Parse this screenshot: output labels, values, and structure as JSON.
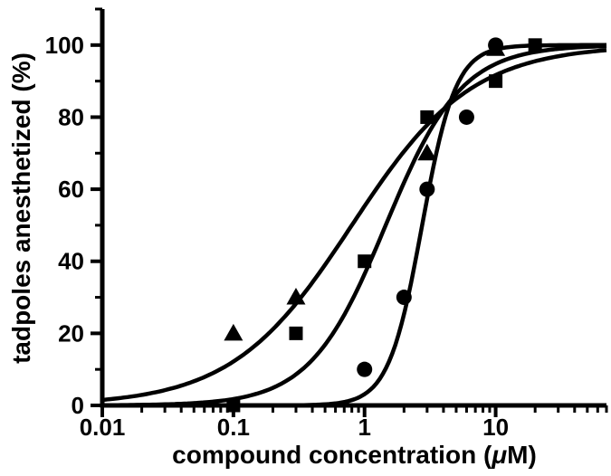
{
  "figure": {
    "background": "#ffffff",
    "foreground": "#000000"
  },
  "chart_data": {
    "type": "scatter",
    "subtype": "dose-response-sigmoid-fit",
    "title": "",
    "xlabel": "compound concentration (μM)",
    "xlabel_parts": {
      "prefix": "compound concentration (",
      "mu": "μ",
      "suffix": "M)"
    },
    "ylabel": "tadpoles anesthetized (%)",
    "x_scale": "log",
    "xlim": [
      0.01,
      70
    ],
    "ylim": [
      0,
      110
    ],
    "x_ticks": [
      0.01,
      0.1,
      1,
      10
    ],
    "x_tick_labels": [
      "0.01",
      "0.1",
      "1",
      "10"
    ],
    "y_ticks": [
      0,
      20,
      40,
      60,
      80,
      100
    ],
    "y_minor_ticks": [
      10,
      30,
      50,
      70,
      90,
      110
    ],
    "grid": false,
    "legend": "none",
    "marker_color": "#000000",
    "curve_color": "#000000",
    "series": [
      {
        "name": "compound-triangle",
        "marker": "triangle",
        "points": [
          [
            0.1,
            20
          ],
          [
            0.3,
            30
          ],
          [
            3,
            70
          ],
          [
            10,
            99
          ]
        ],
        "fit": {
          "model": "hill",
          "top": 100,
          "ec50": 0.8,
          "hill_slope": 0.95
        }
      },
      {
        "name": "compound-square",
        "marker": "square",
        "points": [
          [
            0.1,
            0
          ],
          [
            0.3,
            20
          ],
          [
            1,
            40
          ],
          [
            3,
            80
          ],
          [
            10,
            90
          ],
          [
            20,
            100
          ]
        ],
        "fit": {
          "model": "hill",
          "top": 100,
          "ec50": 1.45,
          "hill_slope": 1.5
        }
      },
      {
        "name": "compound-circle",
        "marker": "circle",
        "points": [
          [
            1,
            10
          ],
          [
            2,
            30
          ],
          [
            3,
            60
          ],
          [
            6,
            80
          ],
          [
            10,
            100
          ]
        ],
        "fit": {
          "model": "hill",
          "top": 100,
          "ec50": 2.75,
          "hill_slope": 3.4
        }
      }
    ]
  }
}
